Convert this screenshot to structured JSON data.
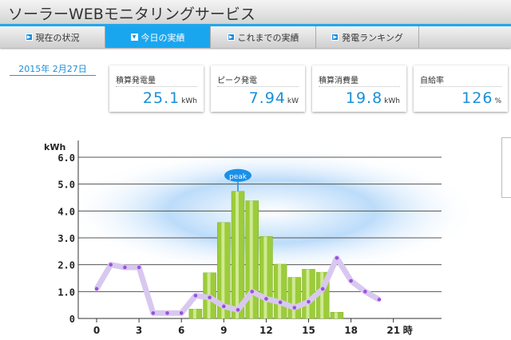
{
  "app_title": "ソーラーWEBモニタリングサービス",
  "tabs": [
    {
      "label": "現在の状況",
      "active": false
    },
    {
      "label": "今日の実績",
      "active": true
    },
    {
      "label": "これまでの実績",
      "active": false
    },
    {
      "label": "発電ランキング",
      "active": false
    }
  ],
  "date": "2015年 2月27日",
  "stats": [
    {
      "label": "積算発電量",
      "value": "25.1",
      "unit": "kWh"
    },
    {
      "label": "ピーク発電",
      "value": "7.94",
      "unit": "kW"
    },
    {
      "label": "積算消費量",
      "value": "19.8",
      "unit": "kWh"
    },
    {
      "label": "自給率",
      "value": "126",
      "unit": "%"
    }
  ],
  "colors": {
    "accent": "#1aa6ef",
    "bar": "#9ccc3a",
    "line": "#d8c8f0",
    "point": "#9b4fe0"
  },
  "chart_data": {
    "type": "bar+line",
    "ylabel": "kWh",
    "xlabel_unit": "時",
    "ylim": [
      0,
      6
    ],
    "yticks": [
      "0",
      "1.0",
      "2.0",
      "3.0",
      "4.0",
      "5.0",
      "6.0"
    ],
    "xticks": [
      0,
      3,
      6,
      9,
      12,
      15,
      18,
      21
    ],
    "grid": true,
    "peak_label": "peak",
    "bars": {
      "x": [
        7,
        8,
        9,
        10,
        11,
        12,
        13,
        14,
        15,
        16,
        17
      ],
      "values": [
        0.35,
        1.7,
        3.57,
        4.73,
        4.38,
        3.05,
        2.02,
        1.53,
        1.83,
        1.72,
        0.23
      ]
    },
    "line": {
      "x": [
        0,
        1,
        2,
        3,
        4,
        5,
        6,
        7,
        8,
        9,
        10,
        11,
        12,
        13,
        14,
        15,
        16,
        17,
        18,
        19,
        20
      ],
      "values": [
        1.1,
        2.0,
        1.9,
        1.9,
        0.2,
        0.2,
        0.2,
        0.85,
        0.78,
        0.45,
        0.32,
        1.0,
        0.73,
        0.6,
        0.4,
        0.62,
        1.1,
        2.25,
        1.4,
        1.0,
        0.7
      ]
    }
  }
}
